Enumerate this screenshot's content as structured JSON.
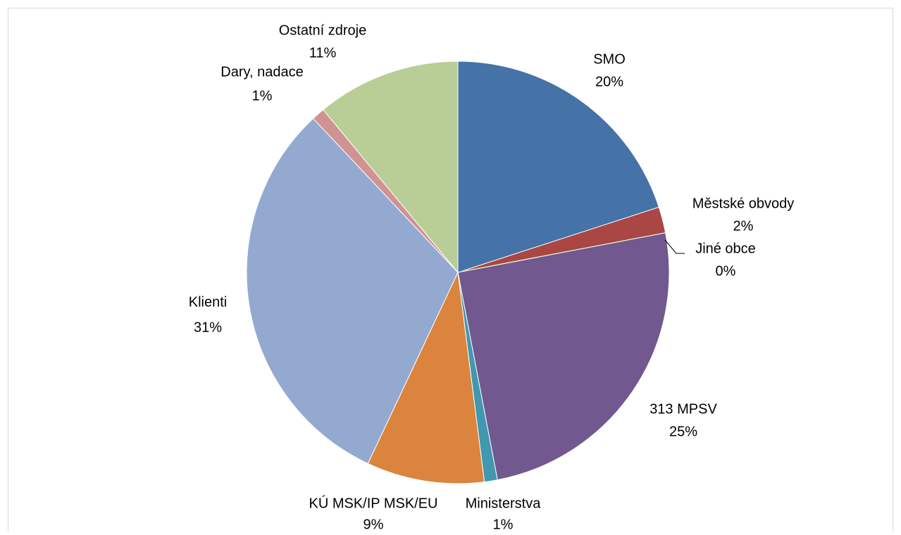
{
  "chart_data": {
    "type": "pie",
    "categories": [
      "SMO",
      "Městské obvody",
      "Jiné obce",
      "313 MPSV",
      "Ministerstva",
      "KÚ MSK/IP MSK/EU",
      "Klienti",
      "Dary, nadace",
      "Ostatní zdroje"
    ],
    "values": [
      20,
      2,
      0,
      25,
      1,
      9,
      31,
      1,
      11
    ],
    "value_labels": [
      "20%",
      "2%",
      "0%",
      "25%",
      "1%",
      "9%",
      "31%",
      "1%",
      "11%"
    ],
    "colors": [
      "#4572a7",
      "#aa4643",
      "#89a54e",
      "#71588f",
      "#4198af",
      "#db843d",
      "#93a9cf",
      "#d19392",
      "#b9cd96"
    ]
  }
}
